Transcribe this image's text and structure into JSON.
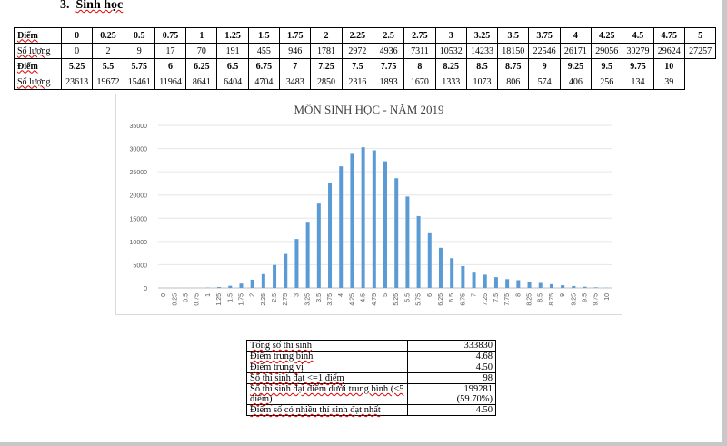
{
  "heading": {
    "number": "3.",
    "title": "Sinh học"
  },
  "score_table": {
    "score_label": "Điểm",
    "count_label": "Số lượng",
    "rows": [
      {
        "scores": [
          "0",
          "0.25",
          "0.5",
          "0.75",
          "1",
          "1.25",
          "1.5",
          "1.75",
          "2",
          "2.25",
          "2.5",
          "2.75",
          "3",
          "3.25",
          "3.5",
          "3.75",
          "4",
          "4.25",
          "4.5",
          "4.75",
          "5"
        ],
        "counts": [
          "0",
          "2",
          "9",
          "17",
          "70",
          "191",
          "455",
          "946",
          "1781",
          "2972",
          "4936",
          "7311",
          "10532",
          "14233",
          "18150",
          "22546",
          "26171",
          "29056",
          "30279",
          "29624",
          "27257"
        ]
      },
      {
        "scores": [
          "5.25",
          "5.5",
          "5.75",
          "6",
          "6.25",
          "6.5",
          "6.75",
          "7",
          "7.25",
          "7.5",
          "7.75",
          "8",
          "8.25",
          "8.5",
          "8.75",
          "9",
          "9.25",
          "9.5",
          "9.75",
          "10"
        ],
        "counts": [
          "23613",
          "19672",
          "15461",
          "11964",
          "8641",
          "6404",
          "4704",
          "3483",
          "2850",
          "2316",
          "1893",
          "1670",
          "1333",
          "1073",
          "806",
          "574",
          "406",
          "256",
          "134",
          "39"
        ]
      }
    ]
  },
  "chart_data": {
    "type": "bar",
    "title": "MÔN SINH HỌC - NĂM 2019",
    "xlabel": "",
    "ylabel": "",
    "ylim": [
      0,
      35000
    ],
    "yticks": [
      0,
      5000,
      10000,
      15000,
      20000,
      25000,
      30000,
      35000
    ],
    "grid": true,
    "legend": "none",
    "color": "#5b9bd5",
    "categories": [
      "0",
      "0.25",
      "0.5",
      "0.75",
      "1",
      "1.25",
      "1.5",
      "1.75",
      "2",
      "2.25",
      "2.5",
      "2.75",
      "3",
      "3.25",
      "3.5",
      "3.75",
      "4",
      "4.25",
      "4.5",
      "4.75",
      "5",
      "5.25",
      "5.5",
      "5.75",
      "6",
      "6.25",
      "6.5",
      "6.75",
      "7",
      "7.25",
      "7.5",
      "7.75",
      "8",
      "8.25",
      "8.5",
      "8.75",
      "9",
      "9.25",
      "9.5",
      "9.75",
      "10"
    ],
    "values": [
      0,
      2,
      9,
      17,
      70,
      191,
      455,
      946,
      1781,
      2972,
      4936,
      7311,
      10532,
      14233,
      18150,
      22546,
      26171,
      29056,
      30279,
      29624,
      27257,
      23613,
      19672,
      15461,
      11964,
      8641,
      6404,
      4704,
      3483,
      2850,
      2316,
      1893,
      1670,
      1333,
      1073,
      806,
      574,
      406,
      256,
      134,
      39
    ]
  },
  "stats": [
    {
      "label": "Tổng số thí sinh",
      "value": "333830"
    },
    {
      "label": "Điểm trung bình",
      "value": "4.68"
    },
    {
      "label": "Điểm trung vị",
      "value": "4.50"
    },
    {
      "label": "Số thí sinh đạt <=1 điểm",
      "value": "98"
    },
    {
      "label": "Số thí sinh đạt điểm dưới trung bình (<5 điểm)",
      "value": "199281",
      "value2": "(59.70%)"
    },
    {
      "label": "Điểm số có nhiều thí sinh đạt nhất",
      "value": "4.50"
    }
  ]
}
